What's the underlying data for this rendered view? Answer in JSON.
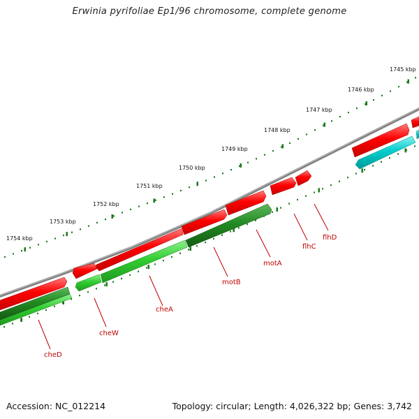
{
  "title": "Erwinia pyrifoliae Ep1/96 chromosome, complete genome",
  "footer": {
    "accession": "Accession: NC_012214",
    "topology": "Topology: circular; Length: 4,026,322 bp; Genes: 3,742"
  },
  "ruler": {
    "labels": [
      "1745 kbp",
      "1746 kbp",
      "1747 kbp",
      "1748 kbp",
      "1749 kbp",
      "1750 kbp",
      "1751 kbp",
      "1752 kbp",
      "1753 kbp",
      "1754 kbp"
    ]
  },
  "genes": [
    "cheD",
    "cheW",
    "cheA",
    "motB",
    "motA",
    "flhC",
    "flhD"
  ],
  "colors": {
    "backbone": "#808080",
    "forward_cds": "#ff0000",
    "reverse_cds": "#32cd32",
    "reverse_cds_dark": "#228b22",
    "other": "#00cdcd",
    "tick": "#1a7a1a",
    "label": "#c00000"
  }
}
